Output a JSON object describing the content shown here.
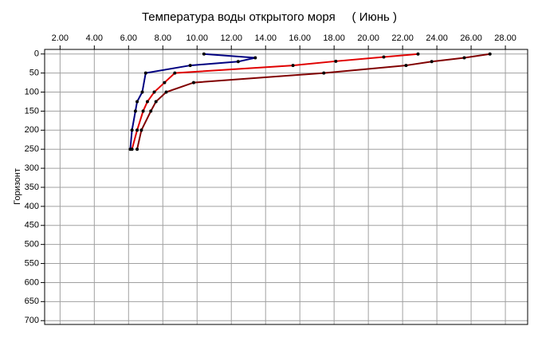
{
  "chart_data": {
    "type": "line",
    "title": "Температура воды открытого моря     ( Июнь )",
    "y_label": "Горизонт",
    "xlim": [
      1.1,
      29.3
    ],
    "ylim": [
      -12,
      710
    ],
    "y_inverted": true,
    "x_axis_position": "top",
    "grid": true,
    "xticks": [
      {
        "value": 2,
        "label": "2.00"
      },
      {
        "value": 4,
        "label": "4.00"
      },
      {
        "value": 6,
        "label": "6.00"
      },
      {
        "value": 8,
        "label": "8.00"
      },
      {
        "value": 10,
        "label": "10.00"
      },
      {
        "value": 12,
        "label": "12.00"
      },
      {
        "value": 14,
        "label": "14.00"
      },
      {
        "value": 16,
        "label": "16.00"
      },
      {
        "value": 18,
        "label": "18.00"
      },
      {
        "value": 20,
        "label": "20.00"
      },
      {
        "value": 22,
        "label": "22.00"
      },
      {
        "value": 24,
        "label": "24.00"
      },
      {
        "value": 26,
        "label": "26.00"
      },
      {
        "value": 28,
        "label": "28.00"
      }
    ],
    "yticks": [
      0,
      50,
      100,
      150,
      200,
      250,
      300,
      350,
      400,
      450,
      500,
      550,
      600,
      650,
      700
    ],
    "series": [
      {
        "color": "#000080",
        "x": [
          10.4,
          13.4,
          12.4,
          9.6,
          7.0,
          6.8,
          6.5,
          6.4,
          6.2,
          6.1
        ],
        "values": [
          0,
          10,
          20,
          30,
          50,
          100,
          125,
          150,
          200,
          250
        ]
      },
      {
        "color": "#e00000",
        "x": [
          22.9,
          20.9,
          18.1,
          15.6,
          8.7,
          8.1,
          7.5,
          7.1,
          6.85,
          6.5,
          6.2
        ],
        "values": [
          0,
          8,
          19,
          30,
          50,
          75,
          100,
          125,
          150,
          200,
          250
        ]
      },
      {
        "color": "#800000",
        "x": [
          27.1,
          25.6,
          23.7,
          22.2,
          17.4,
          9.8,
          8.2,
          7.6,
          7.3,
          6.75,
          6.5
        ],
        "values": [
          0,
          10,
          20,
          30,
          50,
          75,
          100,
          125,
          150,
          200,
          250
        ]
      }
    ]
  }
}
